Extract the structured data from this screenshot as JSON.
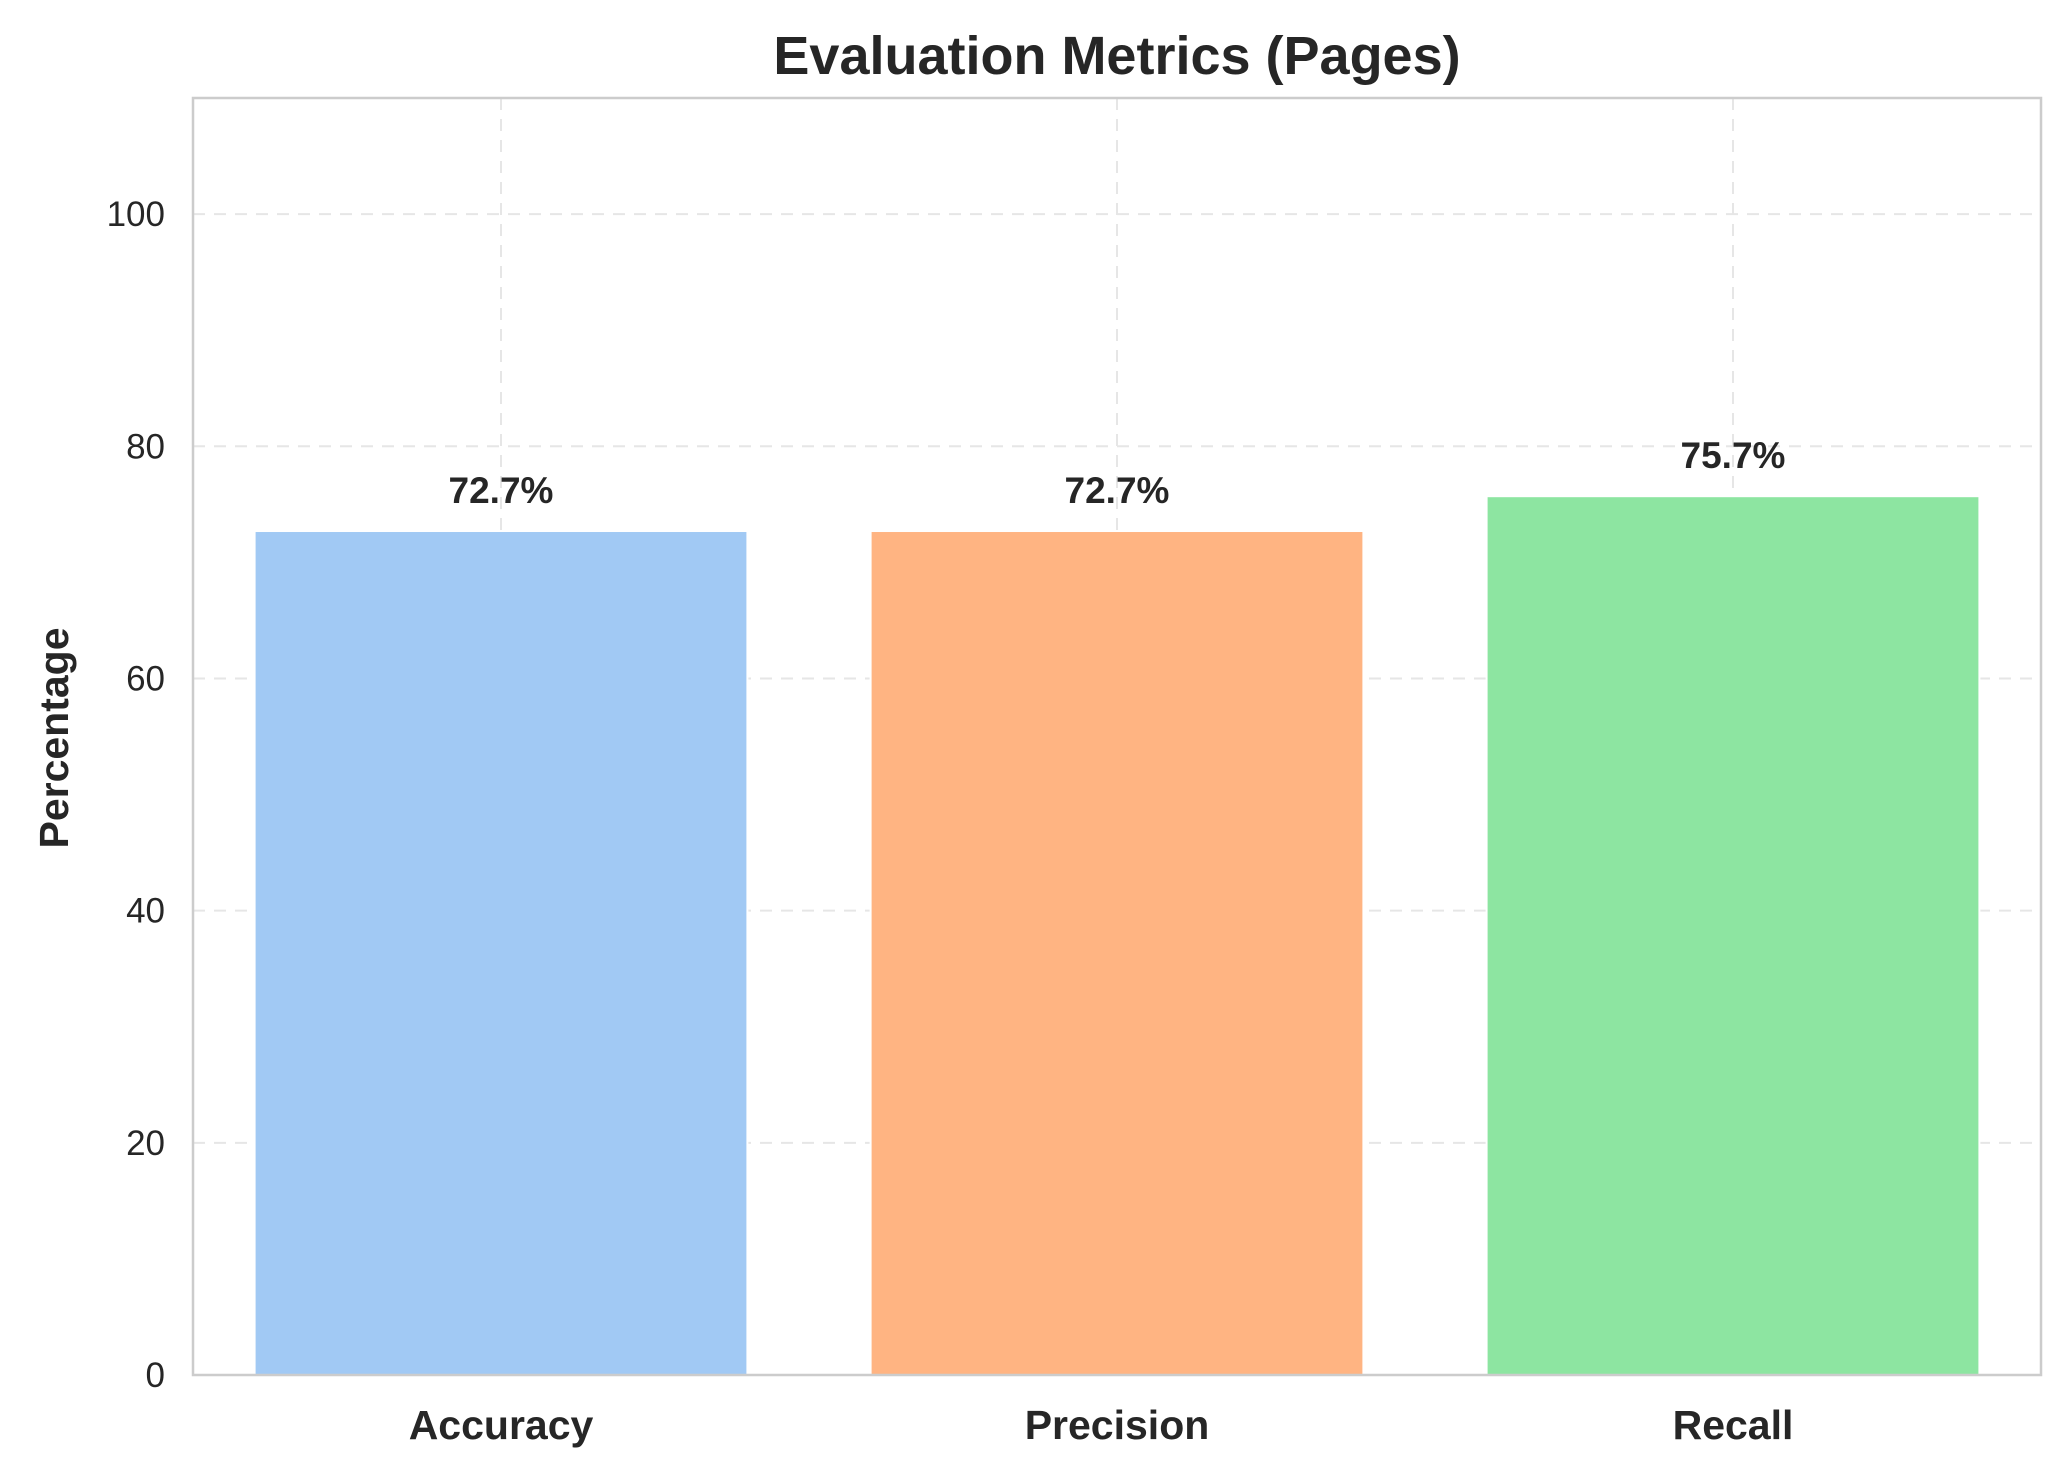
{
  "chart_data": {
    "type": "bar",
    "title": "Evaluation Metrics (Pages)",
    "xlabel": "",
    "ylabel": "Percentage",
    "categories": [
      "Accuracy",
      "Precision",
      "Recall"
    ],
    "values": [
      72.7,
      72.7,
      75.7
    ],
    "value_labels": [
      "72.7%",
      "72.7%",
      "75.7%"
    ],
    "colors": [
      "#a1c9f4",
      "#ffb482",
      "#8de5a1"
    ],
    "ylim": [
      0,
      110
    ],
    "yticks": [
      0,
      20,
      40,
      60,
      80,
      100
    ],
    "grid": true
  }
}
